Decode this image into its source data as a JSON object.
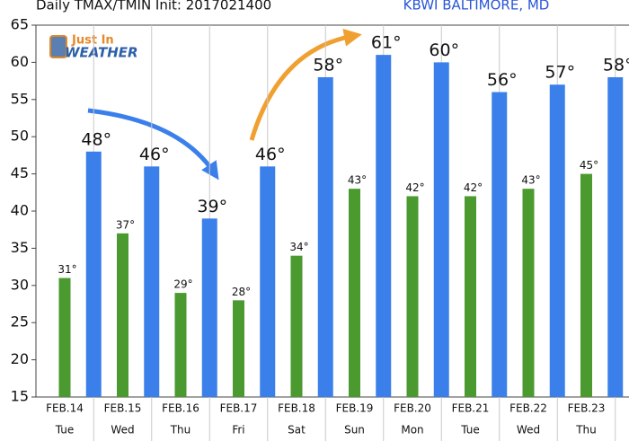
{
  "chart_data": {
    "type": "bar",
    "title": "Daily TMAX/TMIN Init: 2017021400",
    "subtitle": "KBWI BALTIMORE, MD",
    "logo": {
      "line1": "Just In",
      "line2": "WEATHER"
    },
    "categories": [
      "FEB.14",
      "FEB.15",
      "FEB.16",
      "FEB.17",
      "FEB.18",
      "FEB.19",
      "FEB.20",
      "FEB.21",
      "FEB.22",
      "FEB.23"
    ],
    "weekdays": [
      "Tue",
      "Wed",
      "Thu",
      "Fri",
      "Sat",
      "Sun",
      "Mon",
      "Tue",
      "Wed",
      "Thu"
    ],
    "series": [
      {
        "color": "#4a9a2f",
        "values": [
          31,
          37,
          29,
          28,
          34,
          43,
          42,
          42,
          43,
          45
        ],
        "value_labels": [
          "31°",
          "37°",
          "29°",
          "28°",
          "34°",
          "43°",
          "42°",
          "42°",
          "43°",
          "45°"
        ]
      },
      {
        "color": "#3b80ea",
        "values": [
          48,
          46,
          39,
          46,
          58,
          61,
          60,
          56,
          57,
          58
        ],
        "value_labels": [
          "48°",
          "46°",
          "39°",
          "46°",
          "58°",
          "61°",
          "60°",
          "56°",
          "57°",
          "58°"
        ]
      }
    ],
    "ylim": [
      15,
      65
    ],
    "yticks": [
      15,
      20,
      25,
      30,
      35,
      40,
      45,
      50,
      55,
      60,
      65
    ]
  }
}
